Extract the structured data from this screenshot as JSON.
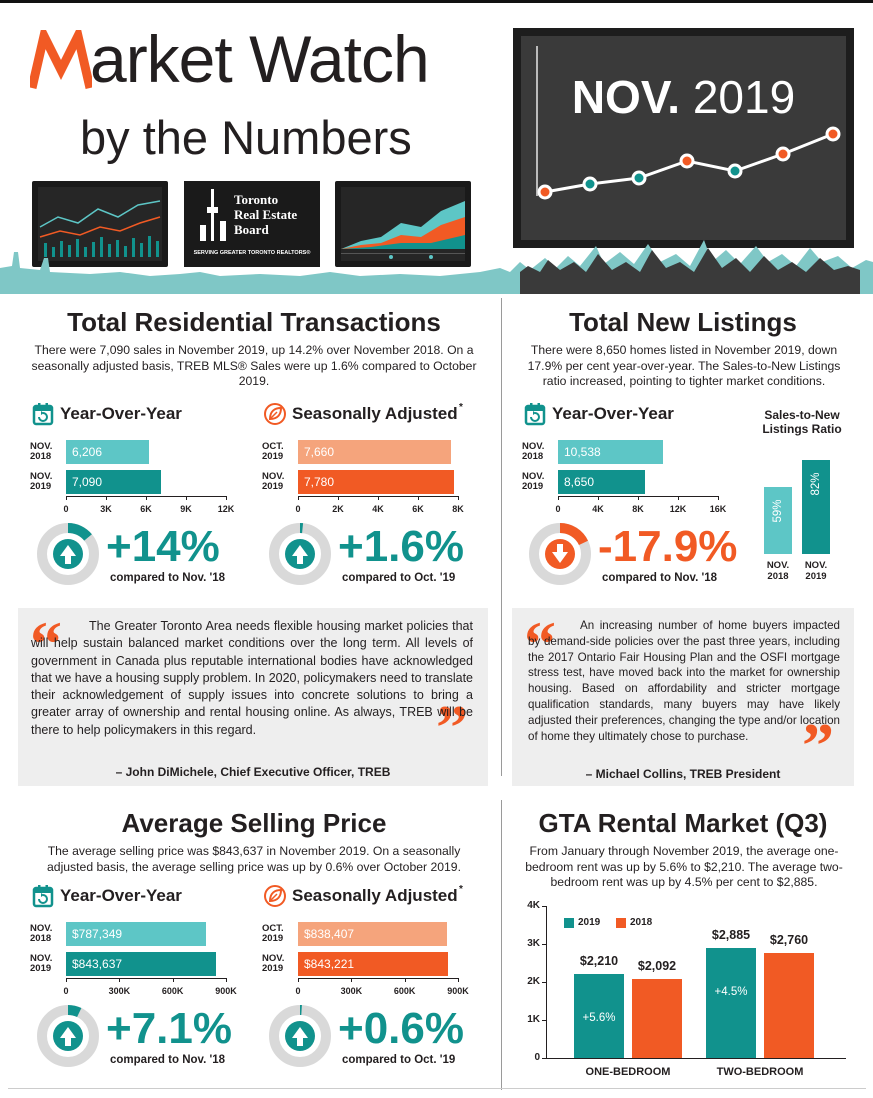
{
  "header": {
    "title_line1": "Market Watch",
    "title_line2": "by the Numbers",
    "date_title": "NOV. 2019",
    "treb_logo": {
      "line1": "Toronto",
      "line2": "Real Estate",
      "line3": "Board",
      "tagline": "SERVING GREATER TORONTO REALTORS®"
    }
  },
  "colors": {
    "teal": "#11928d",
    "light_teal": "#5dc6c6",
    "orange": "#f15a24",
    "light_orange": "#f5a47c",
    "grey": "#eeeeee"
  },
  "transactions": {
    "title": "Total Residential Transactions",
    "description": "There were 7,090 sales in November 2019, up 14.2% over November 2018. On a seasonally adjusted basis, TREB MLS® Sales were up 1.6% compared to October 2019.",
    "yoy": {
      "heading": "Year-Over-Year",
      "rows": [
        {
          "label1": "NOV.",
          "label2": "2018",
          "value": 6206,
          "text": "6,206"
        },
        {
          "label1": "NOV.",
          "label2": "2019",
          "value": 7090,
          "text": "7,090"
        }
      ],
      "ticks": [
        "0",
        "3K",
        "6K",
        "9K",
        "12K"
      ],
      "max": 12000,
      "change": "+14%",
      "compare": "compared to Nov. '18",
      "gauge_fraction": 0.14
    },
    "sa": {
      "heading": "Seasonally Adjusted",
      "asterisk": "*",
      "rows": [
        {
          "label1": "OCT.",
          "label2": "2019",
          "value": 7660,
          "text": "7,660"
        },
        {
          "label1": "NOV.",
          "label2": "2019",
          "value": 7780,
          "text": "7,780"
        }
      ],
      "ticks": [
        "0",
        "2K",
        "4K",
        "6K",
        "8K"
      ],
      "max": 8000,
      "change": "+1.6%",
      "compare": "compared to Oct. '19",
      "gauge_fraction": 0.016
    }
  },
  "listings": {
    "title": "Total New Listings",
    "description": "There were 8,650 homes listed in November 2019, down 17.9% per cent year-over-year. The Sales-to-New Listings ratio increased, pointing to tighter market conditions.",
    "yoy": {
      "heading": "Year-Over-Year",
      "rows": [
        {
          "label1": "NOV.",
          "label2": "2018",
          "value": 10538,
          "text": "10,538"
        },
        {
          "label1": "NOV.",
          "label2": "2019",
          "value": 8650,
          "text": "8,650"
        }
      ],
      "ticks": [
        "0",
        "4K",
        "8K",
        "12K",
        "16K"
      ],
      "max": 16000,
      "change": "-17.9%",
      "compare": "compared to Nov. '18",
      "gauge_fraction": 0.179
    },
    "ratio": {
      "heading_line1": "Sales-to-New",
      "heading_line2": "Listings Ratio",
      "bars": [
        {
          "value": 59,
          "text": "59%",
          "label1": "NOV.",
          "label2": "2018"
        },
        {
          "value": 82,
          "text": "82%",
          "label1": "NOV.",
          "label2": "2019"
        }
      ]
    }
  },
  "quote1": {
    "text": "The Greater Toronto Area needs flexible housing market policies that will help sustain balanced market conditions over the long term. All levels of government in Canada plus reputable international bodies have acknowledged that we have a housing supply problem. In 2020, policymakers need to translate their acknowledgement of supply issues into concrete solutions to bring a greater array of ownership and rental housing online. As always, TREB will be there to help policymakers in this regard.",
    "by": "– John DiMichele, Chief Executive Officer, TREB"
  },
  "quote2": {
    "text": "An increasing number of home buyers impacted by demand-side policies over the past three years, including the 2017 Ontario Fair Housing Plan and the OSFI mortgage stress test, have moved back into the market for ownership housing. Based on affordability and stricter mortgage qualification standards, many buyers may have likely adjusted their preferences, changing the type and/or location of home they ultimately chose to purchase.",
    "by": "– Michael Collins, TREB President"
  },
  "price": {
    "title": "Average Selling Price",
    "description": "The average selling price was $843,637 in November 2019. On a seasonally adjusted basis, the average selling price was up by 0.6% over October 2019.",
    "yoy": {
      "heading": "Year-Over-Year",
      "rows": [
        {
          "label1": "NOV.",
          "label2": "2018",
          "value": 787349,
          "text": "$787,349"
        },
        {
          "label1": "NOV.",
          "label2": "2019",
          "value": 843637,
          "text": "$843,637"
        }
      ],
      "ticks": [
        "0",
        "300K",
        "600K",
        "900K"
      ],
      "max": 900000,
      "change": "+7.1%",
      "compare": "compared to Nov. '18",
      "gauge_fraction": 0.071
    },
    "sa": {
      "heading": "Seasonally Adjusted",
      "asterisk": "*",
      "rows": [
        {
          "label1": "OCT.",
          "label2": "2019",
          "value": 838407,
          "text": "$838,407"
        },
        {
          "label1": "NOV.",
          "label2": "2019",
          "value": 843221,
          "text": "$843,221"
        }
      ],
      "ticks": [
        "0",
        "300K",
        "600K",
        "900K"
      ],
      "max": 900000,
      "change": "+0.6%",
      "compare": "compared to Oct. '19",
      "gauge_fraction": 0.006
    }
  },
  "rental": {
    "title": "GTA Rental Market (Q3)",
    "description": "From January through November 2019, the average one-bedroom rent was up by 5.6% to $2,210. The average two-bedroom rent was up by 4.5% per cent to $2,885.",
    "legend": [
      "2019",
      "2018"
    ],
    "yticks": [
      "0",
      "1K",
      "2K",
      "3K",
      "4K"
    ],
    "ymax": 4000,
    "groups": [
      {
        "label": "ONE-BEDROOM",
        "v2019": 2210,
        "t2019": "$2,210",
        "v2018": 2092,
        "t2018": "$2,092",
        "change": "+5.6%"
      },
      {
        "label": "TWO-BEDROOM",
        "v2019": 2885,
        "t2019": "$2,885",
        "v2018": 2760,
        "t2018": "$2,760",
        "change": "+4.5%"
      }
    ]
  }
}
